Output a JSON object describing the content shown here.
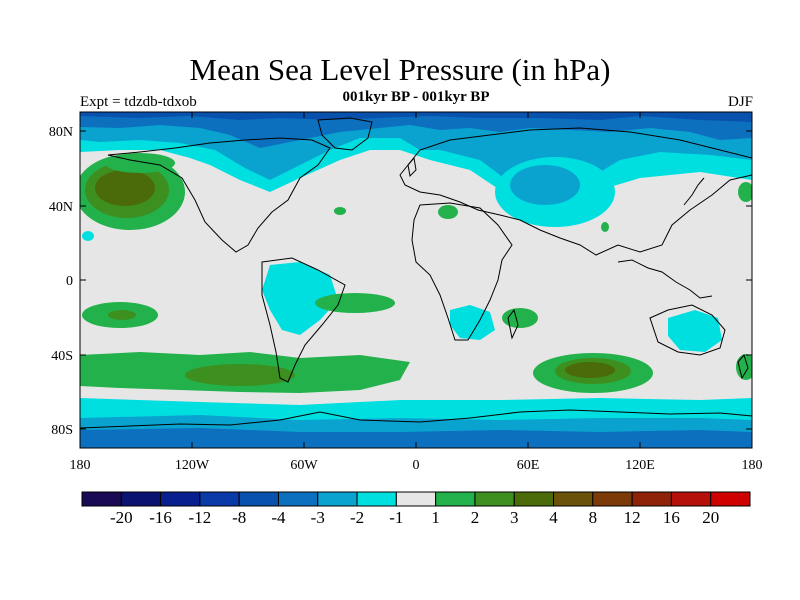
{
  "header": {
    "title": "Mean Sea Level Pressure (in hPa)",
    "subtitle": "001kyr BP - 001kyr BP",
    "experiment": "Expt = tdzdb-tdxob",
    "season": "DJF"
  },
  "map": {
    "projection": "cylindrical-equidistant",
    "lon_range": [
      -180,
      180
    ],
    "lat_range": [
      -90,
      90
    ],
    "background_fill": "#e6e6e6",
    "lon_tick_labels": [
      "180",
      "120W",
      "60W",
      "0",
      "60E",
      "120E",
      "180"
    ],
    "lat_tick_labels": [
      "80N",
      "40N",
      "0",
      "40S",
      "80S"
    ]
  },
  "colorbar": {
    "colors": [
      "#1a0a55",
      "#0a1470",
      "#08208f",
      "#0a3aa8",
      "#0852ae",
      "#0c70bf",
      "#0aa3d0",
      "#00dfe0",
      "#e6e6e6",
      "#23b14b",
      "#3d8f1f",
      "#4b6b0a",
      "#6b5209",
      "#7d3a09",
      "#8f230a",
      "#b5100a",
      "#cf0000"
    ],
    "labels": [
      "-20",
      "-16",
      "-12",
      "-8",
      "-4",
      "-3",
      "-2",
      "-1",
      "1",
      "2",
      "3",
      "4",
      "8",
      "12",
      "16",
      "20"
    ]
  }
}
